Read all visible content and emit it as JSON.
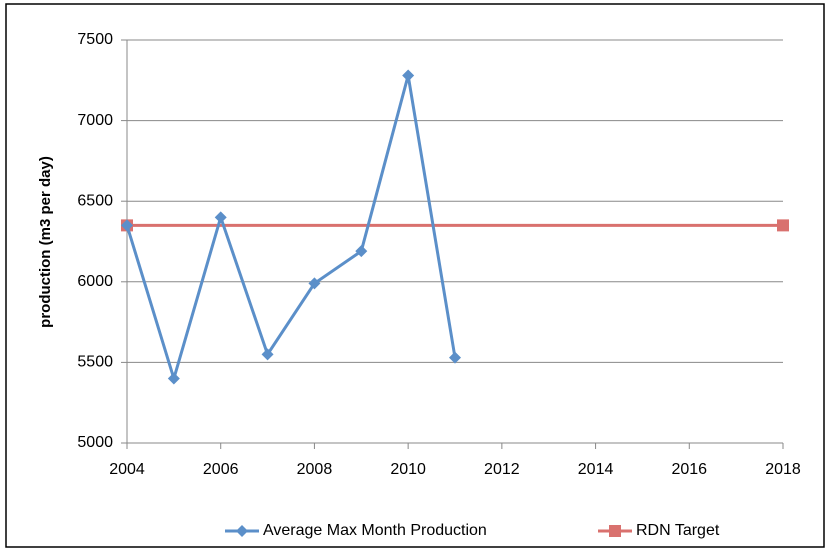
{
  "chart_data": {
    "type": "line",
    "y_label": "production (m3 per day)",
    "series": [
      {
        "name": "Average Max Month Production",
        "color": "#5b8fc9",
        "marker": "diamond",
        "x": [
          2004,
          2005,
          2006,
          2007,
          2008,
          2009,
          2010,
          2011
        ],
        "values": [
          6350,
          5400,
          6400,
          5550,
          5990,
          6190,
          7280,
          5530
        ]
      },
      {
        "name": "RDN Target",
        "color": "#d9716e",
        "marker": "square",
        "x": [
          2004,
          2018
        ],
        "values": [
          6350,
          6350
        ]
      }
    ],
    "xlim": [
      2004,
      2018
    ],
    "xticks": [
      2004,
      2006,
      2008,
      2010,
      2012,
      2014,
      2016,
      2018
    ],
    "ylim": [
      5000,
      7500
    ],
    "yticks": [
      5000,
      5500,
      6000,
      6500,
      7000,
      7500
    ],
    "grid": true,
    "legend": "bottom"
  }
}
